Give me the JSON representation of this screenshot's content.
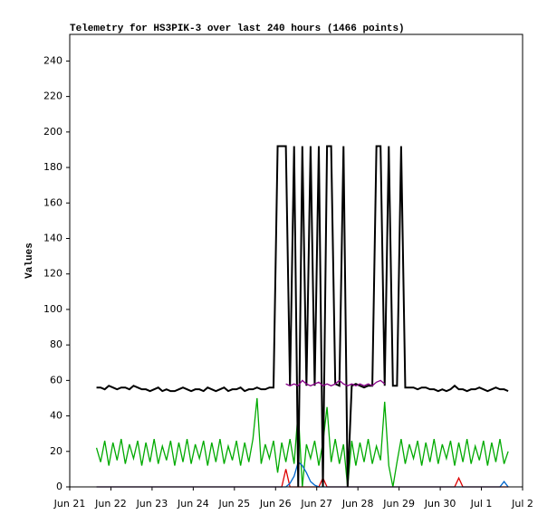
{
  "chart_data": {
    "type": "line",
    "title": "Telemetry for HS3PIK-3 over last 240 hours (1466 points)",
    "ylabel": "Values",
    "xlim": [
      21,
      32
    ],
    "xticks": [
      {
        "value": 21,
        "label": "Jun 21"
      },
      {
        "value": 22,
        "label": "Jun 22"
      },
      {
        "value": 23,
        "label": "Jun 23"
      },
      {
        "value": 24,
        "label": "Jun 24"
      },
      {
        "value": 25,
        "label": "Jun 25"
      },
      {
        "value": 26,
        "label": "Jun 26"
      },
      {
        "value": 27,
        "label": "Jun 27"
      },
      {
        "value": 28,
        "label": "Jun 28"
      },
      {
        "value": 29,
        "label": "Jun 29"
      },
      {
        "value": 30,
        "label": "Jun 30"
      },
      {
        "value": 31,
        "label": "Jul 1"
      },
      {
        "value": 32,
        "label": "Jul 2"
      }
    ],
    "ylim": [
      0,
      255
    ],
    "yticks": [
      0,
      20,
      40,
      60,
      80,
      100,
      120,
      140,
      160,
      180,
      200,
      220,
      240
    ],
    "grid": false,
    "x": [
      21.65,
      21.75,
      21.85,
      21.95,
      22.05,
      22.15,
      22.25,
      22.35,
      22.45,
      22.55,
      22.65,
      22.75,
      22.85,
      22.95,
      23.05,
      23.15,
      23.25,
      23.35,
      23.45,
      23.55,
      23.65,
      23.75,
      23.85,
      23.95,
      24.05,
      24.15,
      24.25,
      24.35,
      24.45,
      24.55,
      24.65,
      24.75,
      24.85,
      24.95,
      25.05,
      25.15,
      25.25,
      25.35,
      25.45,
      25.55,
      25.65,
      25.75,
      25.85,
      25.95,
      26.05,
      26.15,
      26.25,
      26.35,
      26.45,
      26.55,
      26.65,
      26.75,
      26.85,
      26.95,
      27.05,
      27.15,
      27.25,
      27.35,
      27.45,
      27.55,
      27.65,
      27.75,
      27.85,
      27.95,
      28.05,
      28.15,
      28.25,
      28.35,
      28.45,
      28.55,
      28.65,
      28.75,
      28.85,
      28.95,
      29.05,
      29.15,
      29.25,
      29.35,
      29.45,
      29.55,
      29.65,
      29.75,
      29.85,
      29.95,
      30.05,
      30.15,
      30.25,
      30.35,
      30.45,
      30.55,
      30.65,
      30.75,
      30.85,
      30.95,
      31.05,
      31.15,
      31.25,
      31.35,
      31.45,
      31.55,
      31.65
    ],
    "series": [
      {
        "color": "#00aa00",
        "values": [
          22,
          14,
          26,
          12,
          25,
          15,
          27,
          13,
          24,
          16,
          26,
          12,
          25,
          14,
          27,
          13,
          23,
          15,
          26,
          12,
          25,
          14,
          27,
          13,
          24,
          16,
          26,
          12,
          25,
          14,
          27,
          13,
          23,
          15,
          26,
          12,
          25,
          14,
          27,
          50,
          13,
          24,
          16,
          26,
          8,
          25,
          14,
          27,
          13,
          43,
          0,
          24,
          16,
          26,
          12,
          25,
          45,
          14,
          27,
          13,
          24,
          0,
          26,
          12,
          25,
          14,
          27,
          13,
          23,
          15,
          48,
          12,
          0,
          14,
          27,
          13,
          24,
          16,
          26,
          12,
          25,
          14,
          27,
          13,
          24,
          16,
          26,
          12,
          25,
          14,
          27,
          13,
          23,
          15,
          26,
          12,
          25,
          14,
          27,
          13,
          20
        ]
      },
      {
        "color": "#dd0000",
        "values": [
          0,
          0,
          0,
          0,
          0,
          0,
          0,
          0,
          0,
          0,
          0,
          0,
          0,
          0,
          0,
          0,
          0,
          0,
          0,
          0,
          0,
          0,
          0,
          0,
          0,
          0,
          0,
          0,
          0,
          0,
          0,
          0,
          0,
          0,
          0,
          0,
          0,
          0,
          0,
          0,
          0,
          0,
          0,
          0,
          0,
          0,
          10,
          0,
          0,
          0,
          0,
          0,
          0,
          0,
          0,
          5,
          0,
          0,
          0,
          0,
          0,
          0,
          0,
          0,
          0,
          0,
          0,
          0,
          0,
          0,
          0,
          0,
          0,
          0,
          0,
          0,
          0,
          0,
          0,
          0,
          0,
          0,
          0,
          0,
          0,
          0,
          0,
          0,
          5,
          0,
          0,
          0,
          0,
          0,
          0,
          0,
          0,
          0,
          0,
          0,
          0
        ]
      },
      {
        "color": "#0066cc",
        "values": [
          0,
          0,
          0,
          0,
          0,
          0,
          0,
          0,
          0,
          0,
          0,
          0,
          0,
          0,
          0,
          0,
          0,
          0,
          0,
          0,
          0,
          0,
          0,
          0,
          0,
          0,
          0,
          0,
          0,
          0,
          0,
          0,
          0,
          0,
          0,
          0,
          0,
          0,
          0,
          0,
          0,
          0,
          0,
          0,
          0,
          0,
          0,
          2,
          6,
          14,
          12,
          8,
          3,
          1,
          0,
          0,
          0,
          0,
          0,
          0,
          0,
          0,
          0,
          0,
          0,
          0,
          0,
          0,
          0,
          0,
          0,
          0,
          0,
          0,
          0,
          0,
          0,
          0,
          0,
          0,
          0,
          0,
          0,
          0,
          0,
          0,
          0,
          0,
          0,
          0,
          0,
          0,
          0,
          0,
          0,
          0,
          0,
          0,
          0,
          3,
          0
        ]
      },
      {
        "color": "#000000",
        "values": [
          56,
          56,
          55,
          57,
          56,
          55,
          56,
          56,
          55,
          57,
          56,
          55,
          55,
          54,
          55,
          56,
          54,
          55,
          54,
          54,
          55,
          56,
          55,
          54,
          55,
          55,
          54,
          56,
          55,
          54,
          55,
          56,
          54,
          55,
          55,
          56,
          54,
          55,
          55,
          56,
          55,
          55,
          56,
          56,
          192,
          192,
          192,
          57,
          192,
          0,
          192,
          57,
          192,
          57,
          192,
          0,
          192,
          192,
          58,
          57,
          192,
          0,
          57,
          58,
          57,
          56,
          57,
          57,
          192,
          192,
          57,
          192,
          57,
          57,
          192,
          56,
          56,
          56,
          55,
          56,
          56,
          55,
          55,
          54,
          55,
          54,
          55,
          57,
          55,
          55,
          54,
          55,
          55,
          56,
          55,
          54,
          55,
          56,
          55,
          55,
          54
        ]
      },
      {
        "color": "#880088",
        "values": [
          null,
          null,
          null,
          null,
          null,
          null,
          null,
          null,
          null,
          null,
          null,
          null,
          null,
          null,
          null,
          null,
          null,
          null,
          null,
          null,
          null,
          null,
          null,
          null,
          null,
          null,
          null,
          null,
          null,
          null,
          null,
          null,
          null,
          null,
          null,
          null,
          null,
          null,
          null,
          null,
          null,
          null,
          null,
          null,
          null,
          null,
          58,
          57,
          58,
          57,
          60,
          58,
          57,
          58,
          59,
          57,
          58,
          57,
          58,
          60,
          58,
          57,
          58,
          57,
          58,
          57,
          58,
          57,
          59,
          60,
          58,
          null,
          null,
          null,
          null,
          null,
          null,
          null,
          null,
          null,
          null,
          null,
          null,
          null,
          null,
          null,
          null,
          null,
          null,
          null,
          null,
          null,
          null,
          null,
          null,
          null,
          null,
          null,
          null,
          null,
          null
        ]
      }
    ]
  }
}
